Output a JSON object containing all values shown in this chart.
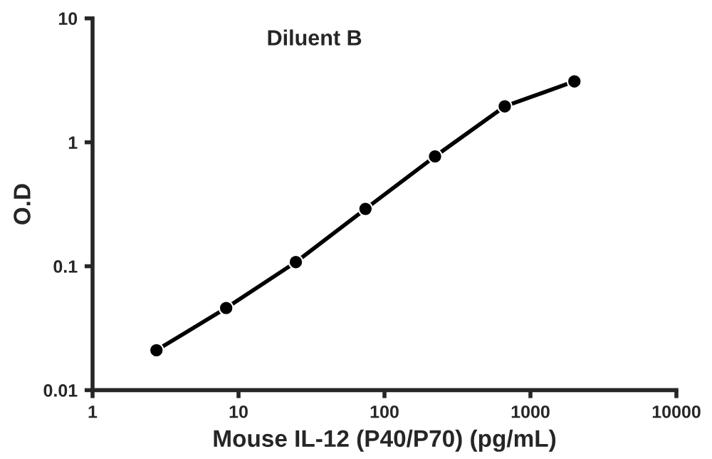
{
  "chart_data": {
    "type": "line",
    "title": "Diluent B",
    "xlabel": "Mouse IL-12 (P40/P70) (pg/mL)",
    "ylabel": "O.D",
    "x": [
      2.74,
      8.23,
      24.7,
      74.1,
      222,
      667,
      2000
    ],
    "series": [
      {
        "color": "#000000",
        "values": [
          0.021,
          0.046,
          0.108,
          0.29,
          0.77,
          1.95,
          3.1
        ]
      }
    ],
    "log": "xy",
    "xlim": [
      1,
      10000
    ],
    "ylim": [
      0.01,
      10
    ],
    "xticks": [
      1,
      10,
      100,
      1000,
      10000
    ],
    "yticks": [
      0.01,
      0.1,
      1,
      10
    ],
    "grid": false,
    "legend": false,
    "marker": "circle",
    "line_style": "solid"
  }
}
